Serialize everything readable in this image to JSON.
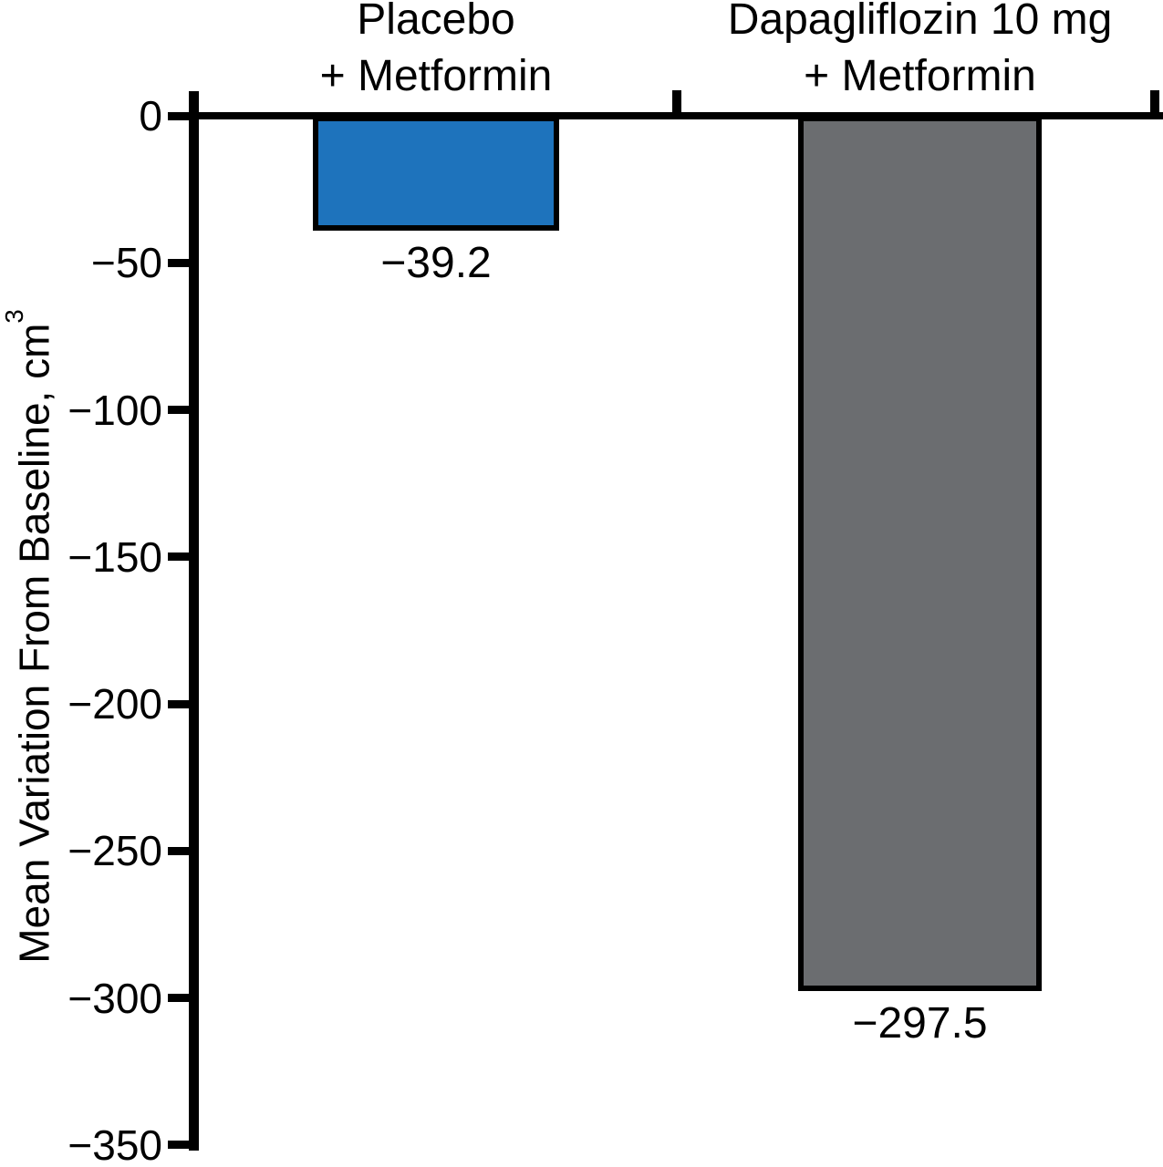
{
  "figure": {
    "background": "#ffffff",
    "axis_color": "#000000",
    "text_color": "#000000",
    "y_axis": {
      "title_full": "Mean Variation From Baseline, cm³",
      "title_main": "Mean Variation From Baseline, cm",
      "title_sup": "3",
      "tick_labels": [
        "0",
        "−50",
        "−100",
        "−150",
        "−200",
        "−250",
        "−300",
        "−350"
      ]
    }
  },
  "chart_data": {
    "type": "bar",
    "title": "",
    "categories": [
      "Placebo + Metformin",
      "Dapagliflozin 10 mg + Metformin"
    ],
    "category_lines": [
      [
        "Placebo",
        "+ Metformin"
      ],
      [
        "Dapagliflozin 10 mg",
        "+ Metformin"
      ]
    ],
    "slugs": [
      "placebo-metformin",
      "dapagliflozin-10mg-metformin"
    ],
    "series": [
      {
        "name": "Mean variation from baseline",
        "values": [
          -39.2,
          -297.5
        ]
      }
    ],
    "values": [
      -39.2,
      -297.5
    ],
    "value_labels": [
      "−39.2",
      "−297.5"
    ],
    "bar_colors": [
      "#1e73bc",
      "#6b6d70"
    ],
    "xlabel": "",
    "ylabel": "Mean Variation From Baseline, cm³",
    "ylim": [
      -350,
      0
    ],
    "yticks": [
      0,
      -50,
      -100,
      -150,
      -200,
      -250,
      -300,
      -350
    ],
    "grid": false,
    "legend": null
  }
}
